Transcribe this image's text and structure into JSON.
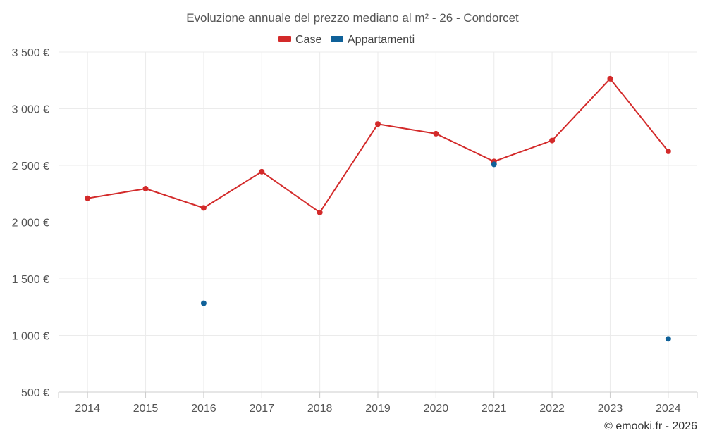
{
  "chart_data": {
    "type": "line",
    "title": "Evoluzione annuale del prezzo mediano al m² - 26 - Condorcet",
    "categories": [
      "2014",
      "2015",
      "2016",
      "2017",
      "2018",
      "2019",
      "2020",
      "2021",
      "2022",
      "2023",
      "2024"
    ],
    "ylim": [
      500,
      3500
    ],
    "yticks": [
      500,
      1000,
      1500,
      2000,
      2500,
      3000,
      3500
    ],
    "ytick_labels": [
      "500 €",
      "1 000 €",
      "1 500 €",
      "2 000 €",
      "2 500 €",
      "3 000 €",
      "3 500 €"
    ],
    "legend_position": "top-center",
    "grid": true,
    "series": [
      {
        "name": "Case",
        "color": "#d32a2a",
        "line": true,
        "values": [
          2210,
          2295,
          2125,
          2445,
          2085,
          2865,
          2780,
          2535,
          2720,
          3265,
          2625
        ]
      },
      {
        "name": "Appartamenti",
        "color": "#0f6199",
        "line": false,
        "values": [
          null,
          null,
          1285,
          null,
          null,
          null,
          null,
          2510,
          null,
          null,
          970
        ]
      }
    ]
  },
  "credit": "© emooki.fr - 2026"
}
